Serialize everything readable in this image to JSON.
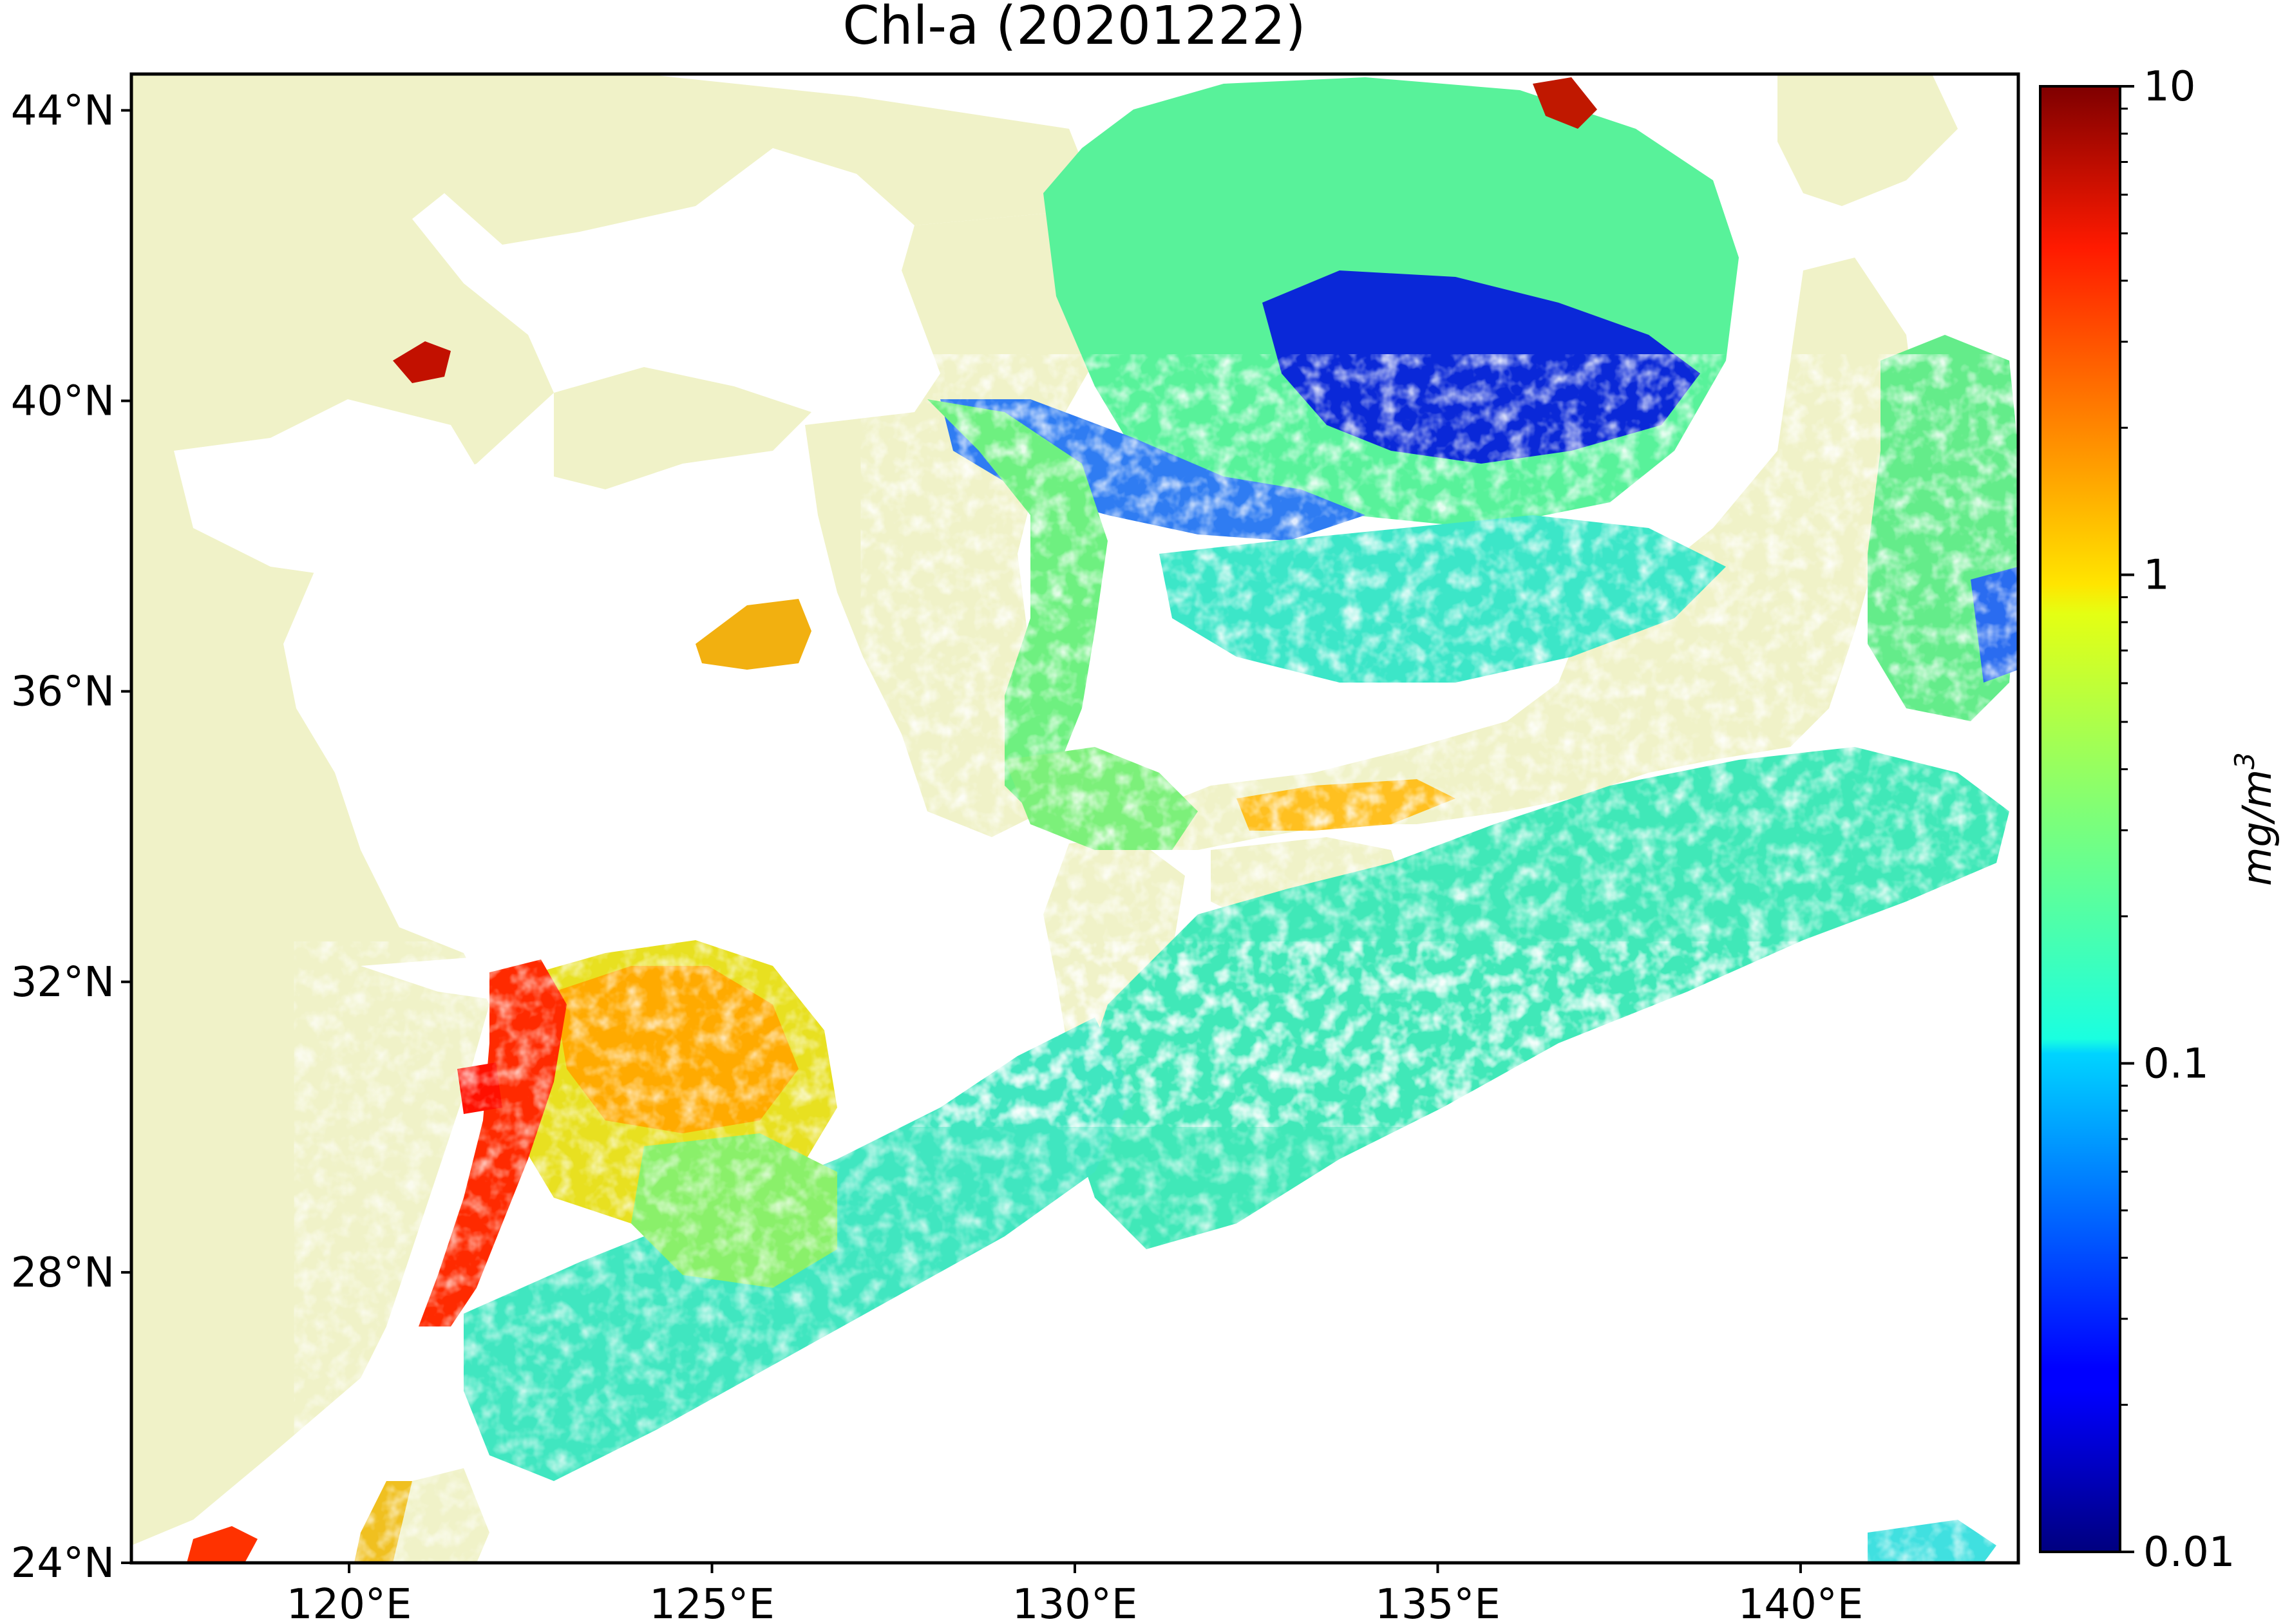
{
  "title": "Chl-a (20201222)",
  "map": {
    "lon_range": [
      117,
      143
    ],
    "lat_range": [
      24,
      44.5
    ],
    "x_ticks": [
      "120°E",
      "125°E",
      "130°E",
      "135°E",
      "140°E"
    ],
    "y_ticks": [
      "24°N",
      "28°N",
      "32°N",
      "36°N",
      "40°N",
      "44°N"
    ],
    "land_color": "#f0f2c8",
    "nodata_color": "#ffffff"
  },
  "colorbar": {
    "label_base": "mg/m",
    "label_exp": "3",
    "scale": "log",
    "range": [
      0.01,
      10
    ],
    "ticks": [
      "0.01",
      "0.1",
      "1",
      "10"
    ],
    "colormap": "jet"
  }
}
